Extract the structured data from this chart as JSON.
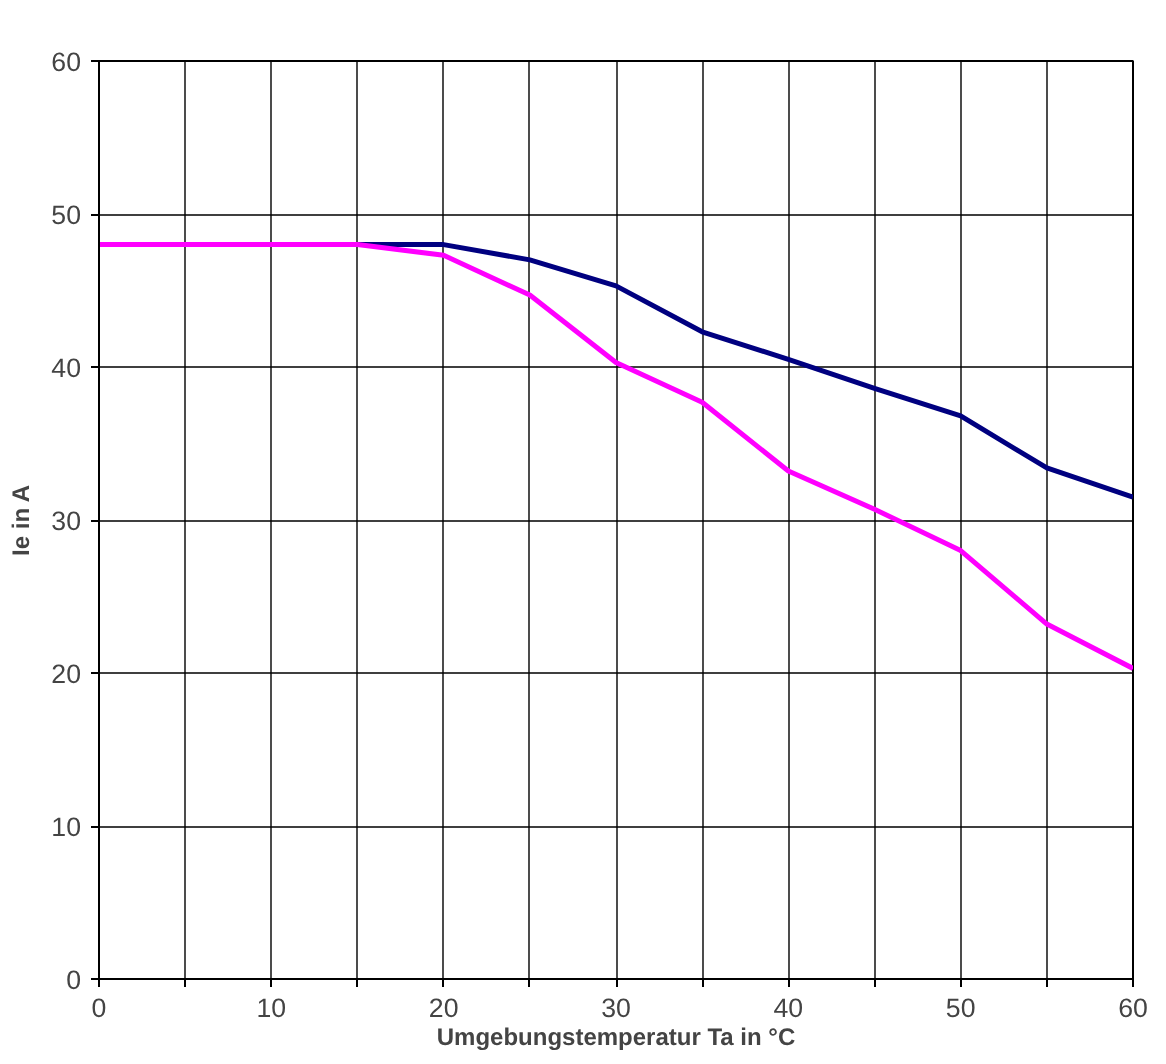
{
  "chart_data": {
    "type": "line",
    "xlabel": "Umgebungstemperatur Ta in °C",
    "ylabel": "Ie in A",
    "x": [
      0,
      5,
      10,
      15,
      20,
      25,
      30,
      35,
      40,
      45,
      50,
      55,
      60
    ],
    "series": [
      {
        "color": "#000080",
        "values": [
          null,
          null,
          null,
          48,
          48,
          47,
          45.3,
          42.3,
          40.5,
          38.6,
          36.8,
          33.4,
          31.5
        ]
      },
      {
        "color": "#ff00ff",
        "values": [
          48,
          48,
          48,
          48,
          47.3,
          44.7,
          40.3,
          37.7,
          33.2,
          30.7,
          28.0,
          23.2,
          20.3
        ]
      }
    ],
    "xlim": [
      0,
      60
    ],
    "ylim": [
      0,
      60
    ],
    "xticks": [
      0,
      {
        "value": 5,
        "label": null
      },
      10,
      {
        "value": 15,
        "label": null
      },
      20,
      {
        "value": 25,
        "label": null
      },
      30,
      {
        "value": 35,
        "label": null
      },
      40,
      {
        "value": 45,
        "label": null
      },
      50,
      {
        "value": 55,
        "label": null
      },
      60
    ],
    "yticks": [
      0,
      10,
      20,
      30,
      40,
      50,
      60
    ],
    "grid": true,
    "marker": "none",
    "line_style": "solid"
  }
}
